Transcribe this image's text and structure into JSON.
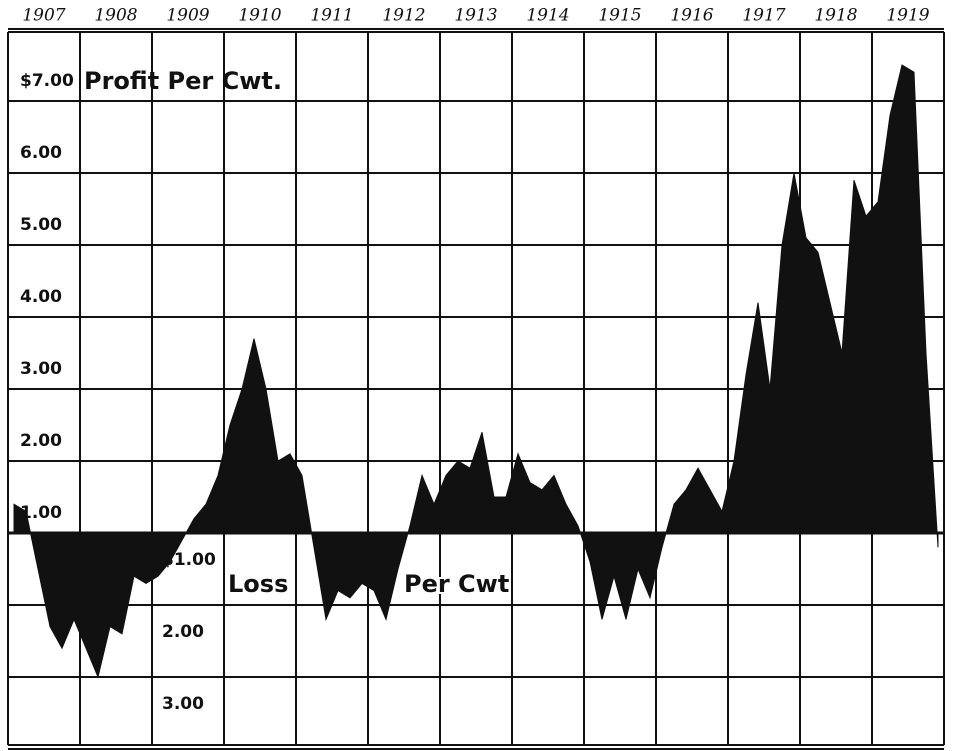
{
  "chart_data": {
    "type": "area",
    "categories": [
      "1907",
      "1908",
      "1909",
      "1910",
      "1911",
      "1912",
      "1913",
      "1914",
      "1915",
      "1916",
      "1917",
      "1918",
      "1919"
    ],
    "values": [
      [
        0.4,
        0.3,
        -0.5,
        -1.3,
        -1.6,
        -1.2
      ],
      [
        -1.6,
        -2.0,
        -1.3,
        -1.4,
        -0.6,
        -0.7
      ],
      [
        -0.6,
        -0.4,
        -0.1,
        0.2,
        0.4,
        0.8
      ],
      [
        1.5,
        2.0,
        2.7,
        2.0,
        1.0,
        1.1
      ],
      [
        0.8,
        -0.2,
        -1.2,
        -0.8,
        -0.9,
        -0.7
      ],
      [
        -0.8,
        -1.2,
        -0.5,
        0.1,
        0.8,
        0.4
      ],
      [
        0.8,
        1.0,
        0.9,
        1.4,
        0.5,
        0.5
      ],
      [
        1.1,
        0.7,
        0.6,
        0.8,
        0.4,
        0.1
      ],
      [
        -0.4,
        -1.2,
        -0.6,
        -1.2,
        -0.5,
        -0.9
      ],
      [
        -0.2,
        0.4,
        0.6,
        0.9,
        0.6,
        0.3
      ],
      [
        1.0,
        2.2,
        3.2,
        2.0,
        4.0,
        5.0
      ],
      [
        4.1,
        3.9,
        3.2,
        2.5,
        4.9,
        4.4
      ],
      [
        4.6,
        5.8,
        6.5,
        6.4,
        2.5,
        -0.2
      ]
    ],
    "color": "#111111",
    "ylim": [
      -3,
      7
    ],
    "yticks": [
      {
        "value": 7,
        "label": "$7.00"
      },
      {
        "value": 6,
        "label": "6.00"
      },
      {
        "value": 5,
        "label": "5.00"
      },
      {
        "value": 4,
        "label": "4.00"
      },
      {
        "value": 3,
        "label": "3.00"
      },
      {
        "value": 2,
        "label": "2.00"
      },
      {
        "value": 1,
        "label": "1.00"
      },
      {
        "value": -1,
        "label": "$1.00"
      },
      {
        "value": -2,
        "label": "2.00"
      },
      {
        "value": -3,
        "label": "3.00"
      }
    ],
    "annotations": [
      "Profit Per Cwt.",
      "Loss",
      "Per Cwt"
    ],
    "grid": true
  }
}
